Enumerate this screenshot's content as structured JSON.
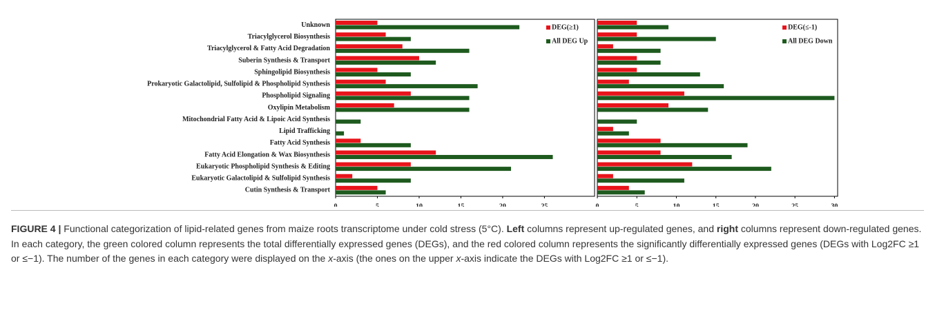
{
  "chart_data": [
    {
      "type": "bar",
      "orientation": "horizontal",
      "categories": [
        "Unknown",
        "Triacylglycerol Biosynthesis",
        "Triacylglycerol & Fatty Acid Degradation",
        "Suberin Synthesis & Transport",
        "Sphingolipid Biosynthesis",
        "Prokaryotic Galactolipid, Sulfolipid & Phospholipid Synthesis",
        "Phospholipid Signaling",
        "Oxylipin Metabolism",
        "Mitochondrial Fatty Acid & Lipoic Acid Synthesis",
        "Lipid Trafficking",
        "Fatty Acid Synthesis",
        "Fatty Acid Elongation & Wax Biosynthesis",
        "Eukaryotic Phospholipid Synthesis & Editing",
        "Eukaryotic Galactolipid & Sulfolipid Synthesis",
        "Cutin Synthesis & Transport"
      ],
      "series": [
        {
          "name": "DEG(≥1)",
          "color": "#e8141b",
          "values": [
            5,
            6,
            8,
            10,
            5,
            6,
            9,
            7,
            0,
            0,
            3,
            12,
            9,
            2,
            5
          ]
        },
        {
          "name": "All DEG Up",
          "color": "#1e5a1e",
          "values": [
            22,
            9,
            16,
            12,
            9,
            17,
            16,
            16,
            3,
            1,
            9,
            26,
            21,
            9,
            6
          ]
        }
      ],
      "xlim": [
        0,
        31
      ],
      "xticks": [
        0,
        5,
        10,
        15,
        20,
        25
      ],
      "legend": "upper right"
    },
    {
      "type": "bar",
      "orientation": "horizontal",
      "series": [
        {
          "name": "DEG(≤-1)",
          "color": "#e8141b",
          "values": [
            5,
            5,
            2,
            5,
            5,
            4,
            11,
            9,
            0,
            2,
            8,
            8,
            12,
            2,
            4
          ]
        },
        {
          "name": "All DEG Down",
          "color": "#1e5a1e",
          "values": [
            9,
            15,
            8,
            8,
            13,
            16,
            30,
            14,
            5,
            4,
            19,
            17,
            22,
            11,
            6
          ]
        }
      ],
      "xlim": [
        0,
        30.4
      ],
      "xticks": [
        0,
        5,
        10,
        15,
        20,
        25,
        30
      ],
      "legend": "upper right"
    }
  ],
  "caption": [
    {
      "text": "FIGURE 4 |",
      "bold": true
    },
    {
      "text": " Functional categorization of lipid-related genes from maize roots transcriptome under cold stress (5°C). "
    },
    {
      "text": "Left",
      "bold": true
    },
    {
      "text": " columns represent up-regulated genes, and "
    },
    {
      "text": "right",
      "bold": true
    },
    {
      "text": " columns represent down-regulated genes. In each category, the green colored column represents the total differentially expressed genes (DEGs), and the red colored column represents the significantly differentially expressed genes (DEGs with Log2FC ≥1 or ≤−1). The number of the genes in each category were displayed on the "
    },
    {
      "text": "x",
      "italic": true
    },
    {
      "text": "-axis (the ones on the upper "
    },
    {
      "text": "x",
      "italic": true
    },
    {
      "text": "-axis indicate the DEGs with Log2FC ≥1 or ≤−1)."
    }
  ]
}
